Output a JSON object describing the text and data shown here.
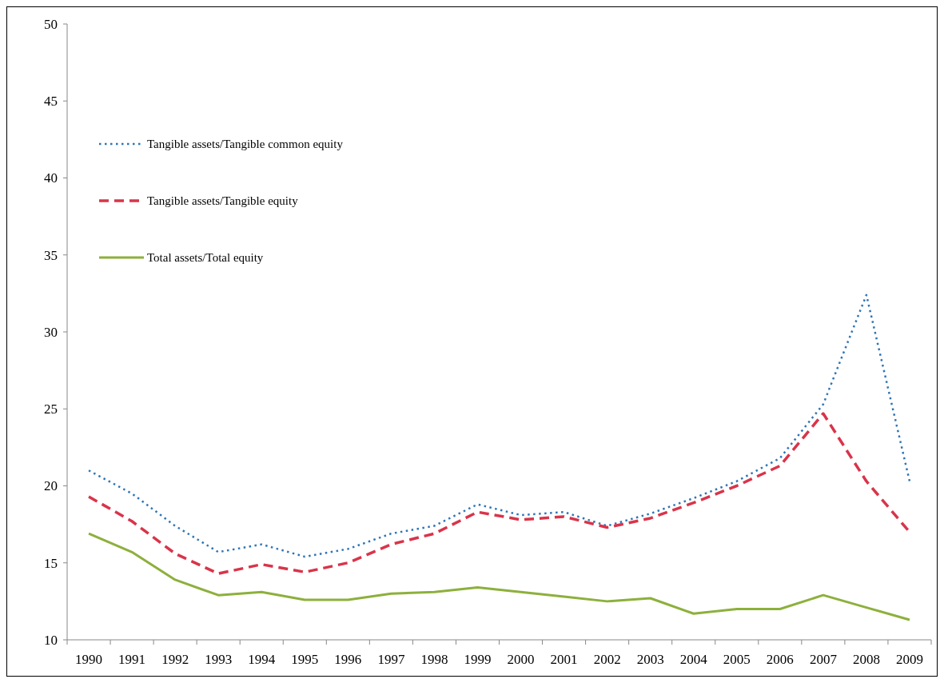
{
  "chart_data": {
    "type": "line",
    "categories": [
      "1990",
      "1991",
      "1992",
      "1993",
      "1994",
      "1995",
      "1996",
      "1997",
      "1998",
      "1999",
      "2000",
      "2001",
      "2002",
      "2003",
      "2004",
      "2005",
      "2006",
      "2007",
      "2008",
      "2009"
    ],
    "ylim": [
      10,
      50
    ],
    "yticks": [
      10,
      15,
      20,
      25,
      30,
      35,
      40,
      45,
      50
    ],
    "grid": false,
    "legend": "top left",
    "series": [
      {
        "name": "Tangible assets/Tangible common equity",
        "color": "#2e75b6",
        "line_style": "dotted",
        "values": [
          21.0,
          19.5,
          17.4,
          15.7,
          16.2,
          15.4,
          15.9,
          16.9,
          17.4,
          18.8,
          18.1,
          18.3,
          17.4,
          18.2,
          19.2,
          20.3,
          21.8,
          25.3,
          32.4,
          20.3
        ]
      },
      {
        "name": "Tangible assets/Tangible equity",
        "color": "#d9344a",
        "line_style": "dashed",
        "values": [
          19.3,
          17.7,
          15.6,
          14.3,
          14.9,
          14.4,
          15.0,
          16.2,
          16.9,
          18.3,
          17.8,
          18.0,
          17.3,
          17.9,
          18.9,
          20.0,
          21.3,
          24.7,
          20.3,
          17.0
        ]
      },
      {
        "name": "Total assets/Total equity",
        "color": "#8db03c",
        "line_style": "solid",
        "values": [
          16.9,
          15.7,
          13.9,
          12.9,
          13.1,
          12.6,
          12.6,
          13.0,
          13.1,
          13.4,
          13.1,
          12.8,
          12.5,
          12.7,
          11.7,
          12.0,
          12.0,
          12.9,
          12.1,
          11.3
        ]
      }
    ]
  }
}
